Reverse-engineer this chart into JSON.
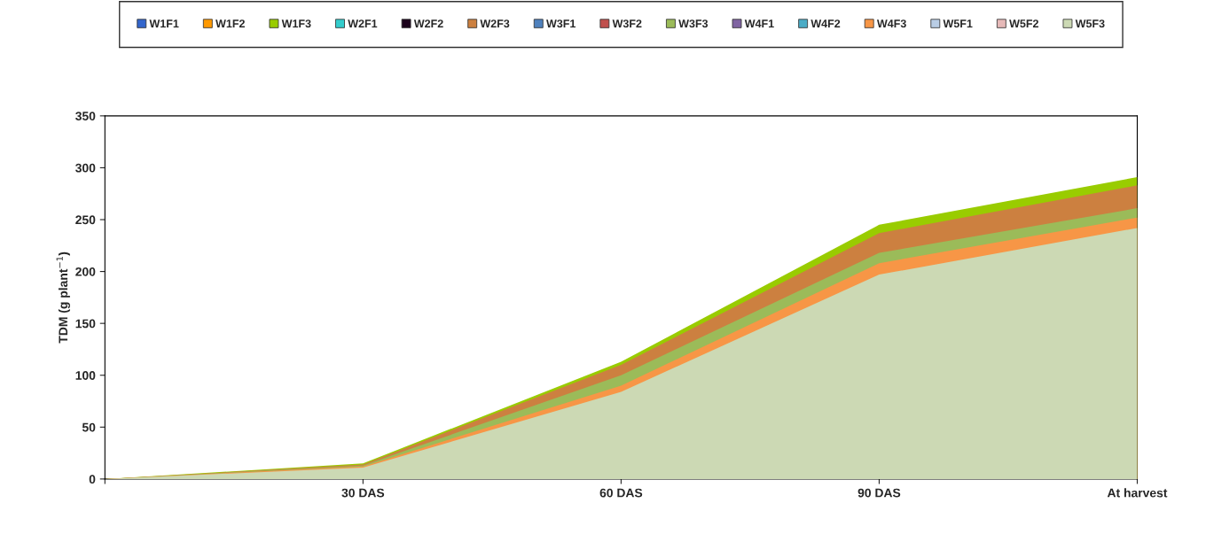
{
  "chart_data": {
    "type": "area",
    "ylabel": "TDM (g plant$^{−1}$)",
    "categories": [
      null,
      "30 DAS",
      "60 DAS",
      "90 DAS",
      "At harvest"
    ],
    "ylim": [
      0,
      350
    ],
    "yticks": [
      0,
      50,
      100,
      150,
      200,
      250,
      300,
      350
    ],
    "grid": false,
    "legend": "top",
    "series": [
      {
        "name": "W1F1",
        "color": "#3366cc",
        "values": [
          null,
          null,
          null,
          null,
          null
        ]
      },
      {
        "name": "W1F2",
        "color": "#ff9900",
        "values": [
          null,
          null,
          null,
          null,
          null
        ]
      },
      {
        "name": "W1F3",
        "color": "#99cc00",
        "values": [
          0,
          15,
          113,
          245,
          291
        ]
      },
      {
        "name": "W2F1",
        "color": "#33cccc",
        "values": [
          null,
          null,
          null,
          null,
          null
        ]
      },
      {
        "name": "W2F2",
        "color": "#1a001a",
        "values": [
          null,
          null,
          null,
          null,
          null
        ]
      },
      {
        "name": "W2F3",
        "color": "#cc8040",
        "values": [
          0,
          14,
          110,
          237,
          283
        ]
      },
      {
        "name": "W3F1",
        "color": "#4f81bd",
        "values": [
          null,
          null,
          null,
          null,
          null
        ]
      },
      {
        "name": "W3F2",
        "color": "#c0504d",
        "values": [
          null,
          null,
          null,
          null,
          null
        ]
      },
      {
        "name": "W3F3",
        "color": "#9bbb59",
        "values": [
          0,
          13,
          100,
          218,
          261
        ]
      },
      {
        "name": "W4F1",
        "color": "#8064a2",
        "values": [
          null,
          null,
          null,
          null,
          null
        ]
      },
      {
        "name": "W4F2",
        "color": "#4bacc6",
        "values": [
          null,
          null,
          null,
          null,
          null
        ]
      },
      {
        "name": "W4F3",
        "color": "#f79646",
        "values": [
          0,
          12,
          90,
          208,
          252
        ]
      },
      {
        "name": "W5F1",
        "color": "#b9cde5",
        "values": [
          null,
          null,
          null,
          null,
          null
        ]
      },
      {
        "name": "W5F2",
        "color": "#e6b9b8",
        "values": [
          null,
          null,
          null,
          null,
          null
        ]
      },
      {
        "name": "W5F3",
        "color": "#ccd9b4",
        "values": [
          0,
          11,
          84,
          197,
          242
        ]
      }
    ]
  }
}
